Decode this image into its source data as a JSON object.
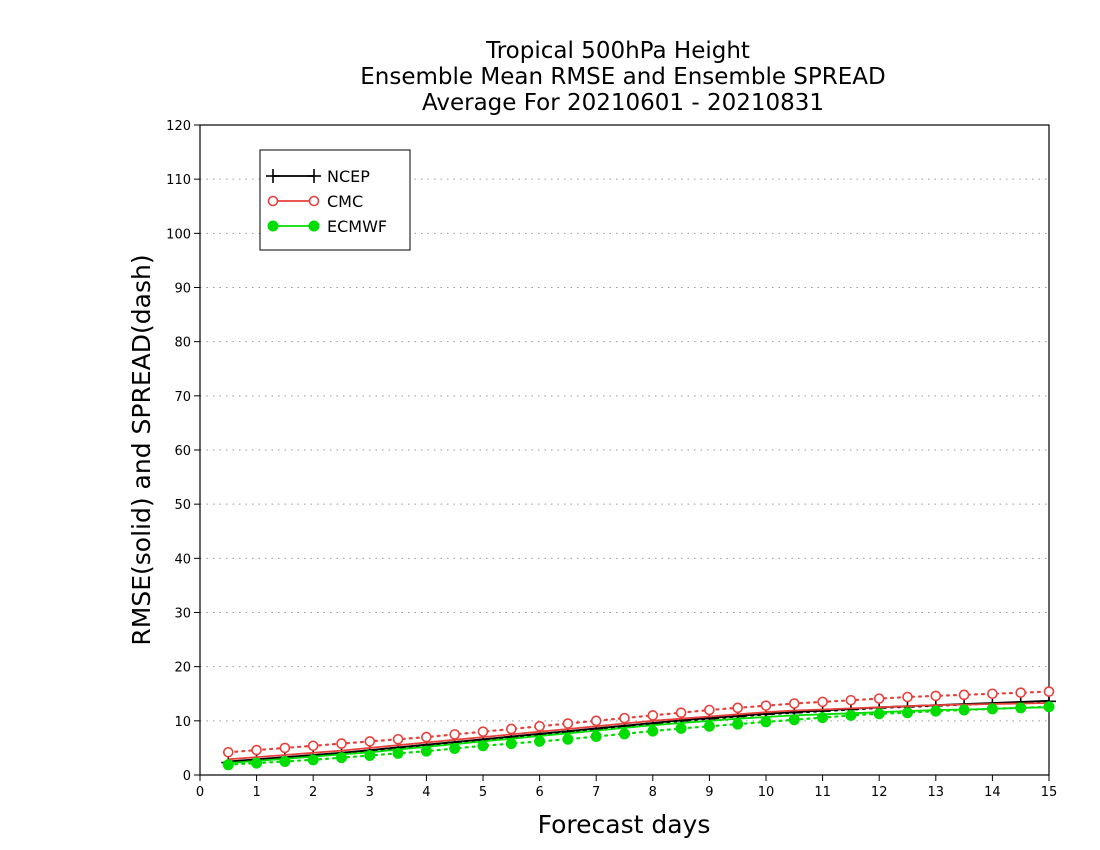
{
  "chart_data": {
    "type": "line",
    "title_lines": [
      "Tropical 500hPa Height",
      "Ensemble Mean RMSE and Ensemble SPREAD",
      "Average For 20210601 - 20210831"
    ],
    "xlabel": "Forecast days",
    "ylabel": "RMSE(solid) and SPREAD(dash)",
    "xlim": [
      0,
      15
    ],
    "ylim": [
      0,
      120
    ],
    "x_ticks": [
      "0",
      "1",
      "2",
      "3",
      "4",
      "5",
      "6",
      "7",
      "8",
      "9",
      "10",
      "11",
      "12",
      "13",
      "14",
      "15"
    ],
    "y_ticks": [
      "0",
      "10",
      "20",
      "30",
      "40",
      "50",
      "60",
      "70",
      "80",
      "90",
      "100",
      "110",
      "120"
    ],
    "grid": "horizontal dotted",
    "legend_position": "top-left",
    "x": [
      0.5,
      1,
      1.5,
      2,
      2.5,
      3,
      3.5,
      4,
      4.5,
      5,
      5.5,
      6,
      6.5,
      7,
      7.5,
      8,
      8.5,
      9,
      9.5,
      10,
      10.5,
      11,
      11.5,
      12,
      12.5,
      13,
      13.5,
      14,
      14.5,
      15
    ],
    "series": [
      {
        "name": "NCEP",
        "color": "#000000",
        "marker": "plus",
        "rmse": [
          2.5,
          2.9,
          3.3,
          3.7,
          4.1,
          4.6,
          5.1,
          5.6,
          6.1,
          6.6,
          7.1,
          7.6,
          8.1,
          8.6,
          9.1,
          9.6,
          10.1,
          10.5,
          10.9,
          11.3,
          11.6,
          11.9,
          12.2,
          12.5,
          12.7,
          12.9,
          13.1,
          13.3,
          13.5,
          13.7
        ],
        "spread": [
          2.3,
          2.8,
          3.2,
          3.6,
          4.0,
          4.5,
          5.0,
          5.5,
          6.0,
          6.5,
          7.0,
          7.5,
          8.0,
          8.5,
          9.0,
          9.5,
          10.0,
          10.4,
          10.8,
          11.2,
          11.5,
          11.8,
          12.1,
          12.4,
          12.6,
          12.8,
          13.0,
          13.2,
          13.4,
          13.6
        ]
      },
      {
        "name": "CMC",
        "color": "#e8413c",
        "marker": "open-circle",
        "rmse": [
          2.9,
          3.3,
          3.7,
          4.1,
          4.5,
          5.0,
          5.5,
          6.0,
          6.5,
          7.0,
          7.5,
          8.0,
          8.5,
          9.0,
          9.5,
          10.0,
          10.4,
          10.8,
          11.2,
          11.6,
          11.9,
          12.1,
          12.3,
          12.5,
          12.7,
          12.9,
          13.0,
          13.1,
          13.2,
          13.3
        ],
        "spread": [
          4.2,
          4.6,
          5.0,
          5.4,
          5.8,
          6.2,
          6.6,
          7.0,
          7.5,
          8.0,
          8.5,
          9.0,
          9.5,
          10.0,
          10.5,
          11.0,
          11.5,
          12.0,
          12.4,
          12.8,
          13.2,
          13.5,
          13.8,
          14.1,
          14.4,
          14.6,
          14.8,
          15.0,
          15.2,
          15.4
        ]
      },
      {
        "name": "ECMWF",
        "color": "#00dd00",
        "marker": "filled-circle",
        "rmse": [
          2.2,
          2.6,
          3.0,
          3.4,
          3.8,
          4.2,
          4.7,
          5.2,
          5.7,
          6.2,
          6.7,
          7.2,
          7.7,
          8.2,
          8.7,
          9.2,
          9.6,
          10.0,
          10.4,
          10.7,
          11.0,
          11.2,
          11.4,
          11.6,
          11.8,
          12.0,
          12.1,
          12.2,
          12.4,
          12.5
        ],
        "spread": [
          1.9,
          2.2,
          2.5,
          2.8,
          3.2,
          3.6,
          4.0,
          4.4,
          4.9,
          5.4,
          5.8,
          6.2,
          6.6,
          7.1,
          7.6,
          8.1,
          8.6,
          9.0,
          9.4,
          9.8,
          10.2,
          10.6,
          11.0,
          11.3,
          11.5,
          11.8,
          12.0,
          12.2,
          12.4,
          12.6
        ]
      }
    ]
  }
}
